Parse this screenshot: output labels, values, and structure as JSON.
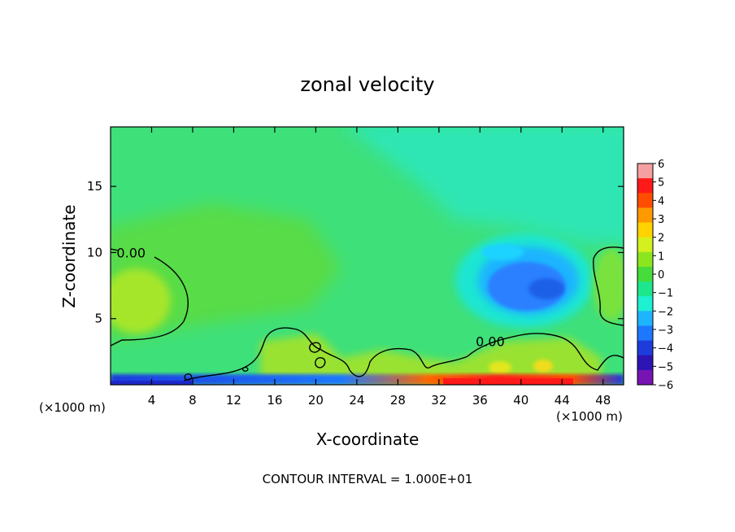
{
  "chart_data": {
    "type": "heatmap",
    "title": "zonal velocity",
    "xlabel": "X-coordinate",
    "ylabel": "Z-coordinate",
    "x_unit_note": "(×1000 m)",
    "x_unit_note_right": "(×1000 m)",
    "footer": "CONTOUR INTERVAL = 1.000E+01",
    "xlim": [
      0,
      50
    ],
    "ylim": [
      0,
      19.5
    ],
    "x_ticks": [
      4,
      8,
      12,
      16,
      20,
      24,
      28,
      32,
      36,
      40,
      44,
      48
    ],
    "x_tick_labels": [
      "4",
      "8",
      "12",
      "16",
      "20",
      "24",
      "28",
      "32",
      "36",
      "40",
      "44",
      "48"
    ],
    "y_ticks": [
      5,
      10,
      15
    ],
    "y_tick_labels": [
      "5",
      "10",
      "15"
    ],
    "colorbar": {
      "levels": [
        6,
        5,
        4,
        3,
        2,
        1,
        0,
        -1,
        -2,
        -3,
        -4,
        -5,
        -6
      ],
      "labels": [
        "6",
        "5",
        "4",
        "3",
        "2",
        "1",
        "0",
        "−1",
        "−2",
        "−3",
        "−4",
        "−5",
        "−6"
      ],
      "colors": [
        "#f5a0a0",
        "#ff1a1a",
        "#ff4d00",
        "#ff9900",
        "#ffd200",
        "#d4f01e",
        "#8ce61e",
        "#46dc3c",
        "#1ee68c",
        "#1ef0d2",
        "#1eb4ff",
        "#1e78ff",
        "#1e3cdc",
        "#2d14b4",
        "#7814b4"
      ]
    },
    "regions": [
      {
        "name": "background",
        "value": 0.2,
        "color": "#46dc3c"
      },
      {
        "name": "upper-right plume",
        "value": -1.3,
        "color": "#1ee6a0"
      },
      {
        "name": "negative core",
        "value": -3.2,
        "color": "#1e78ff",
        "x": [
          36,
          45
        ],
        "z": [
          6,
          10
        ]
      },
      {
        "name": "surface layer",
        "value": -4.5,
        "color": "#1e3cdc",
        "z": [
          0,
          0.5
        ]
      },
      {
        "name": "surface jet",
        "value": 4.5,
        "color": "#ff1a1a",
        "x": [
          32,
          46
        ],
        "z": [
          0,
          0.6
        ]
      }
    ],
    "contour_labels": [
      {
        "text": "0.00",
        "x": 2,
        "z": 10
      },
      {
        "text": "0.00",
        "x": 37,
        "z": 3.3
      }
    ]
  }
}
